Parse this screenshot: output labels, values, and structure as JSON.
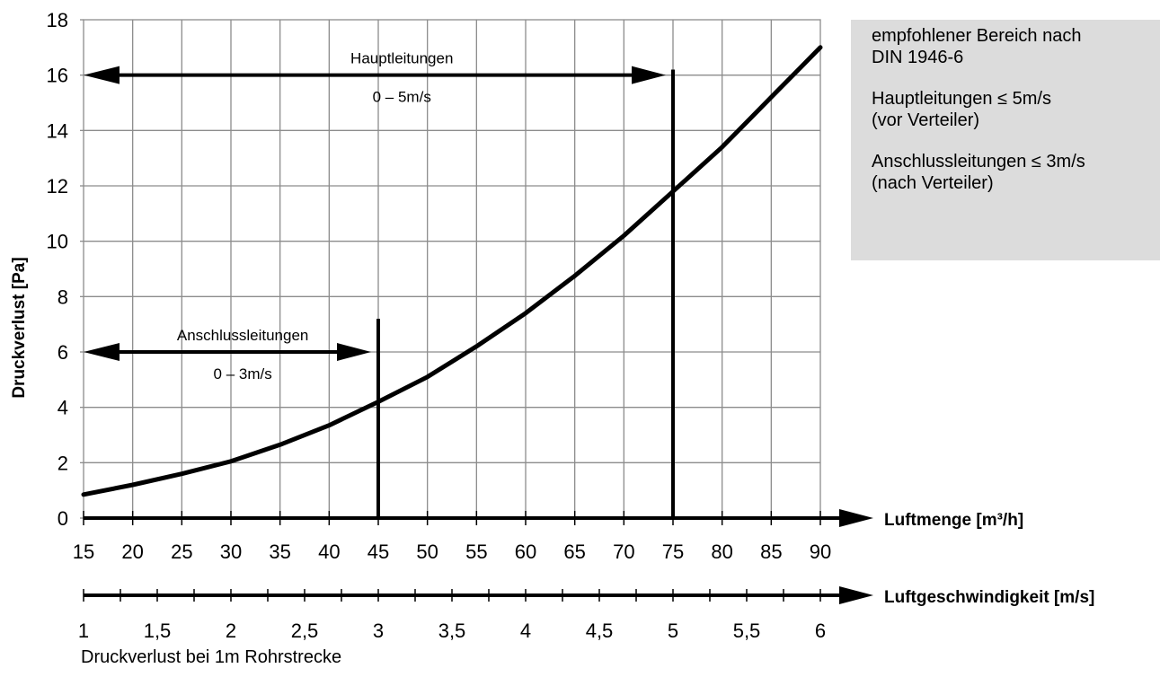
{
  "chart_data": {
    "type": "line",
    "ylabel": "Druckverlust [Pa]",
    "xlabel": "Luftmenge [m³/h]",
    "x2label": "Luftgeschwindigkeit [m/s]",
    "caption": "Druckverlust bei 1m Rohrstrecke",
    "xlim": [
      15,
      90
    ],
    "ylim": [
      0,
      18
    ],
    "grid": true,
    "x_ticks": [
      "15",
      "20",
      "25",
      "30",
      "35",
      "40",
      "45",
      "50",
      "55",
      "60",
      "65",
      "70",
      "75",
      "80",
      "85",
      "90"
    ],
    "y_ticks": [
      "0",
      "2",
      "4",
      "6",
      "8",
      "10",
      "12",
      "14",
      "16",
      "18"
    ],
    "x2_ticks": [
      "1",
      "1,5",
      "2",
      "2,5",
      "3",
      "3,5",
      "4",
      "4,5",
      "5",
      "5,5",
      "6"
    ],
    "series": [
      {
        "x": [
          15,
          20,
          25,
          30,
          35,
          40,
          45,
          50,
          55,
          60,
          65,
          70,
          75,
          80,
          85,
          90
        ],
        "y": [
          0.85,
          1.2,
          1.6,
          2.05,
          2.65,
          3.35,
          4.2,
          5.1,
          6.2,
          7.4,
          8.75,
          10.2,
          11.8,
          13.4,
          15.2,
          17.0
        ]
      }
    ],
    "annotations": [
      {
        "label": "Hauptleitungen",
        "range": "0 – 5m/s",
        "x_start": 15,
        "x_end": 75,
        "y": 16,
        "line_top": 16.2
      },
      {
        "label": "Anschlussleitungen",
        "range": "0 – 3m/s",
        "x_start": 15,
        "x_end": 45,
        "y": 6,
        "line_top": 7.2
      }
    ]
  },
  "note": {
    "lines": [
      [
        "empfohlener Bereich nach",
        "DIN 1946-6"
      ],
      [
        "Hauptleitungen ≤ 5m/s",
        "(vor Verteiler)"
      ],
      [
        "Anschlussleitungen ≤ 3m/s",
        "(nach Verteiler)"
      ]
    ]
  }
}
